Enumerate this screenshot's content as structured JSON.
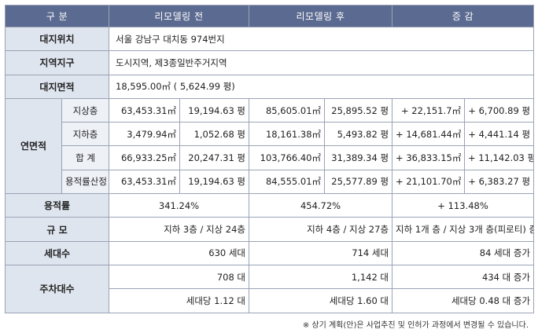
{
  "header": {
    "col_label": "구  분",
    "col_before": "리모델링 전",
    "col_after": "리모델링 후",
    "col_change": "증  감"
  },
  "site_location": {
    "label": "대지위치",
    "value": "서울 강남구 대치동 974번지"
  },
  "zone": {
    "label": "지역지구",
    "value": "도시지역, 제3종일반주거지역"
  },
  "site_area": {
    "label": "대지면적",
    "value": "18,595.00㎡ ( 5,624.99 평)"
  },
  "floor_area": {
    "label": "연면적",
    "rows": [
      {
        "sub": "지상층",
        "before_m2": "63,453.31㎡",
        "before_py": "19,194.63 평",
        "after_m2": "85,605.01㎡",
        "after_py": "25,895.52 평",
        "change_m2": "+ 22,151.7㎡",
        "change_py": "+ 6,700.89 평"
      },
      {
        "sub": "지하층",
        "before_m2": "3,479.94㎡",
        "before_py": "1,052.68 평",
        "after_m2": "18,161.38㎡",
        "after_py": "5,493.82 평",
        "change_m2": "+ 14,681.44㎡",
        "change_py": "+ 4,441.14 평"
      },
      {
        "sub": "합  계",
        "before_m2": "66,933.25㎡",
        "before_py": "20,247.31 평",
        "after_m2": "103,766.40㎡",
        "after_py": "31,389.34 평",
        "change_m2": "+ 36,833.15㎡",
        "change_py": "+ 11,142.03 평"
      },
      {
        "sub": "용적률산정",
        "before_m2": "63,453.31㎡",
        "before_py": "19,194.63 평",
        "after_m2": "84,555.01㎡",
        "after_py": "25,577.89 평",
        "change_m2": "+ 21,101.70㎡",
        "change_py": "+ 6,383.27 평"
      }
    ]
  },
  "far": {
    "label": "용적률",
    "before": "341.24%",
    "after": "454.72%",
    "change": "+ 113.48%"
  },
  "scale": {
    "label": "규  모",
    "before": "지하 3층 / 지상 24층",
    "after": "지하 4층 / 지상 27층",
    "change": "지하 1개 층 / 지상 3개 층(피로티) 증가"
  },
  "households": {
    "label": "세대수",
    "before": "630 세대",
    "after": "714 세대",
    "change": "84 세대 증가"
  },
  "parking": {
    "label": "주차대수",
    "total_before": "708 대",
    "total_after": "1,142 대",
    "total_change": "434 대 증가",
    "per_before": "세대당   1.12 대",
    "per_after": "세대당   1.60 대",
    "per_change": "세대당 0.48 대 증가"
  },
  "note": "※ 상기 계획(안)은 사업추진 및 인허가 과정에서 변경될 수 있습니다."
}
